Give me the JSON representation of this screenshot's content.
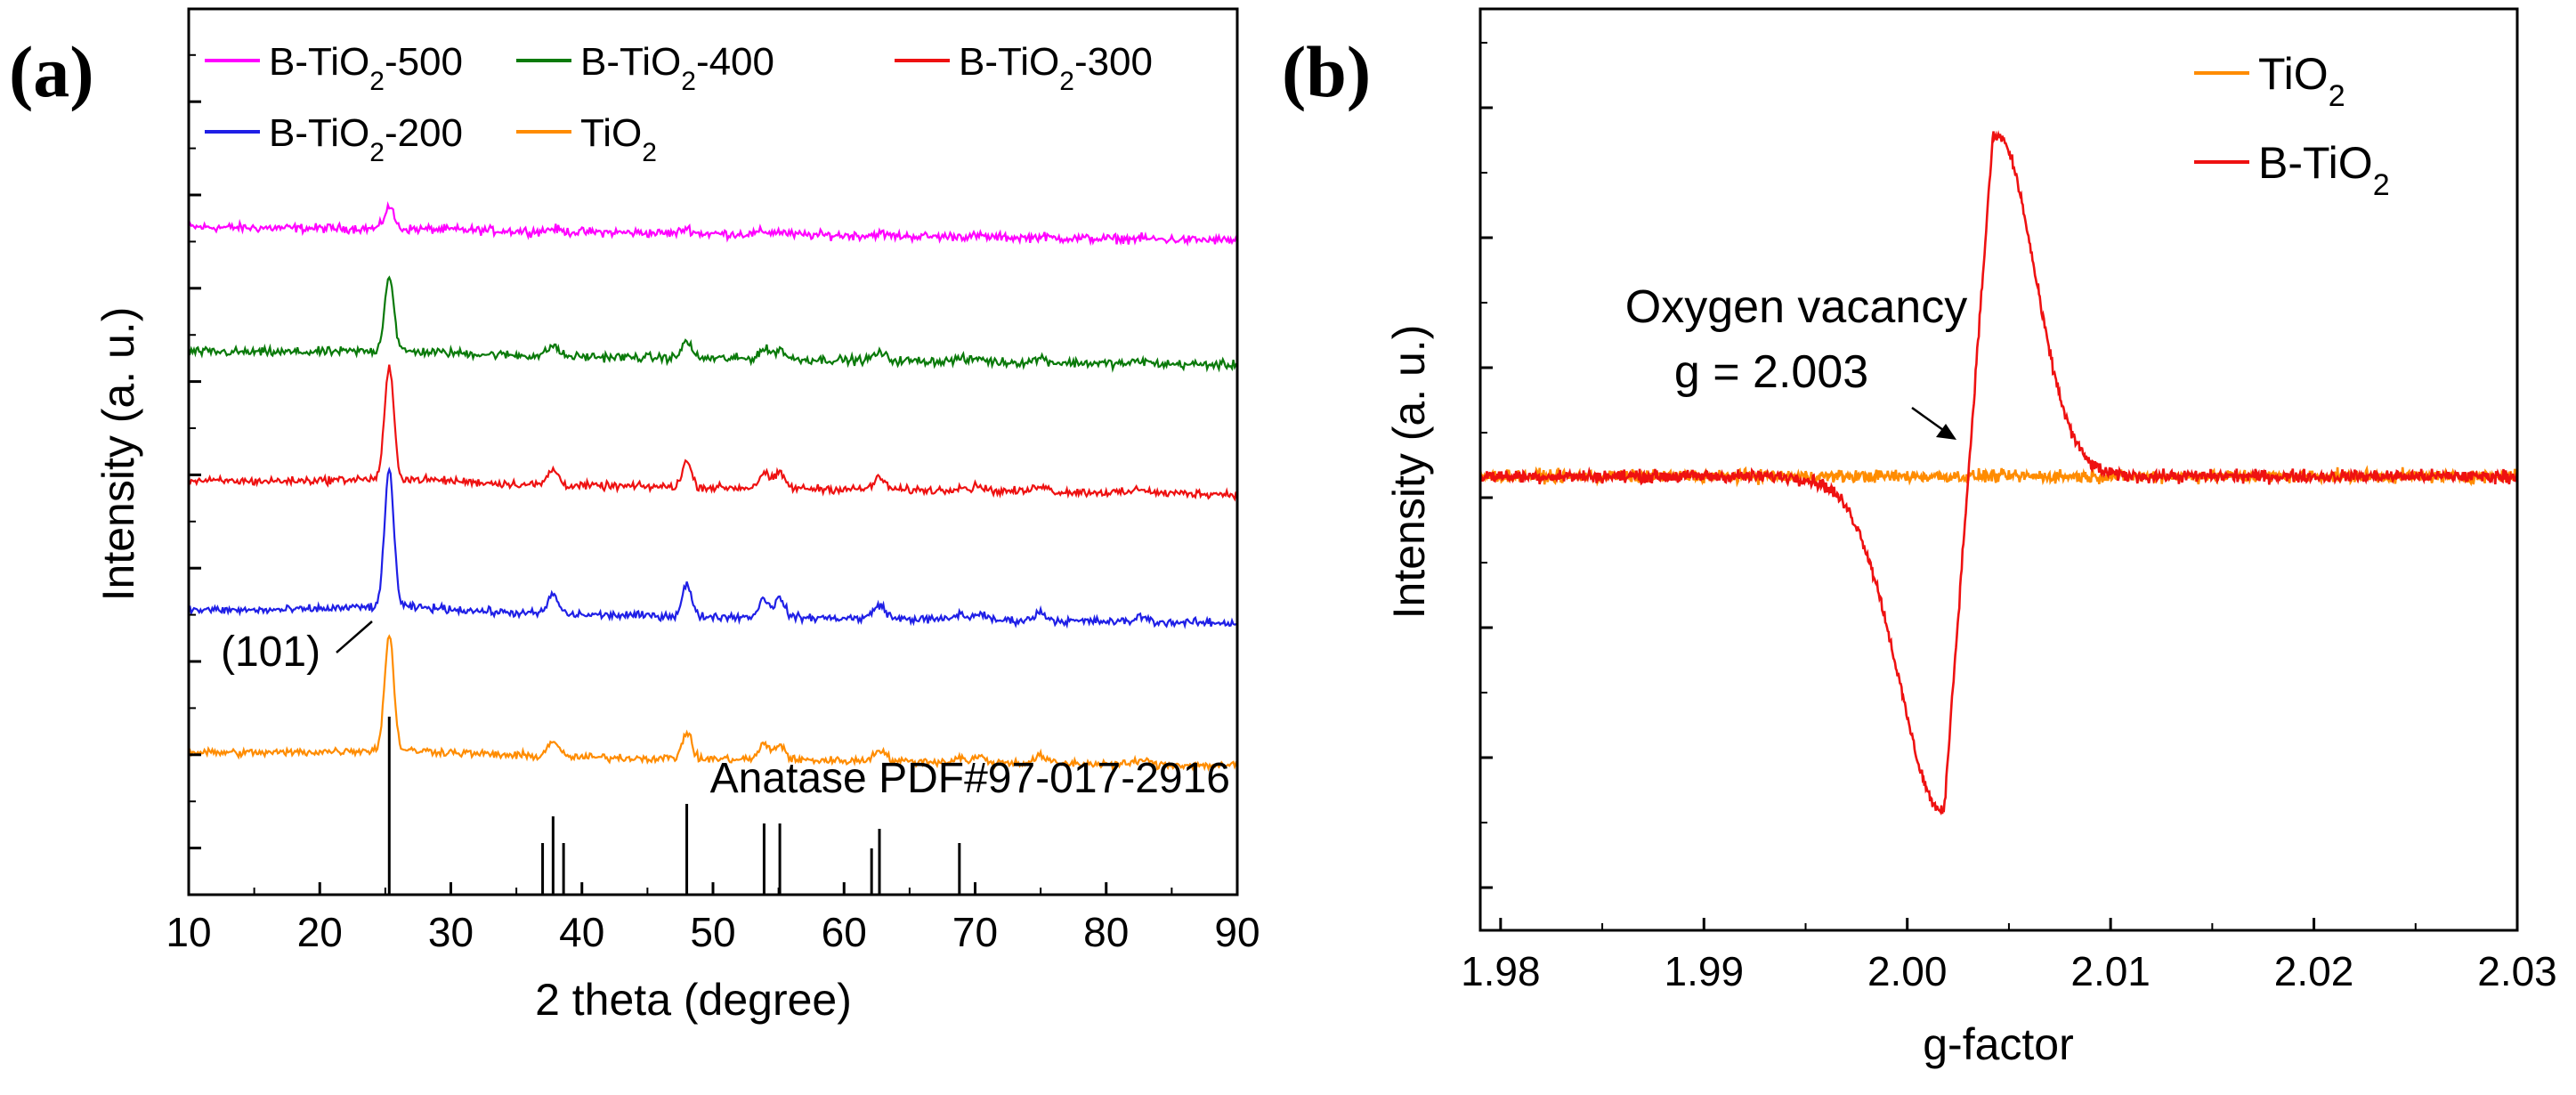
{
  "figure": {
    "label_a": "(a)",
    "label_b": "(b)"
  },
  "chart_data": [
    {
      "type": "line",
      "title": "",
      "xlabel": "2 theta (degree)",
      "ylabel": "Intensity (a. u.)",
      "xlim": [
        10,
        90
      ],
      "xticks": [
        10,
        20,
        30,
        40,
        50,
        60,
        70,
        80,
        90
      ],
      "yticks_labeled": false,
      "legend_position": "top",
      "series": [
        {
          "name": "B-TiO2-500",
          "label_main": "B-TiO",
          "label_sub": "2",
          "label_tail": "-500",
          "color": "#ff00ff",
          "offset": 6.25,
          "scale": 0.25,
          "noise": 0.05,
          "slope": 0.15
        },
        {
          "name": "B-TiO2-400",
          "label_main": "B-TiO",
          "label_sub": "2",
          "label_tail": "-400",
          "color": "#0a7a0a",
          "offset": 4.85,
          "scale": 0.85,
          "noise": 0.05,
          "slope": 0.15
        },
        {
          "name": "B-TiO2-300",
          "label_main": "B-TiO",
          "label_sub": "2",
          "label_tail": "-300",
          "color": "#ee1111",
          "offset": 3.4,
          "scale": 1.25,
          "noise": 0.045,
          "slope": 0.15
        },
        {
          "name": "B-TiO2-200",
          "label_main": "B-TiO",
          "label_sub": "2",
          "label_tail": "-200",
          "color": "#1f1fe6",
          "offset": 1.95,
          "scale": 1.55,
          "noise": 0.045,
          "slope": 0.15
        },
        {
          "name": "TiO2",
          "label_main": "TiO",
          "label_sub": "2",
          "label_tail": "",
          "color": "#ff8c00",
          "offset": 0.35,
          "scale": 1.3,
          "noise": 0.045,
          "slope": 0.15
        }
      ],
      "peaks": [
        {
          "pos": 25.3,
          "amp": 1.0,
          "width": 0.35
        },
        {
          "pos": 37.8,
          "amp": 0.14,
          "width": 0.4
        },
        {
          "pos": 48.0,
          "amp": 0.23,
          "width": 0.35
        },
        {
          "pos": 53.9,
          "amp": 0.13,
          "width": 0.4
        },
        {
          "pos": 55.1,
          "amp": 0.13,
          "width": 0.4
        },
        {
          "pos": 62.7,
          "amp": 0.1,
          "width": 0.45
        },
        {
          "pos": 68.8,
          "amp": 0.04,
          "width": 0.4
        },
        {
          "pos": 70.3,
          "amp": 0.05,
          "width": 0.4
        },
        {
          "pos": 75.0,
          "amp": 0.06,
          "width": 0.45
        },
        {
          "pos": 82.7,
          "amp": 0.04,
          "width": 0.45
        }
      ],
      "reference": {
        "label": "Anatase PDF#97-017-2916",
        "lines": [
          {
            "x": 25.3,
            "h": 1.0
          },
          {
            "x": 37.0,
            "h": 0.29
          },
          {
            "x": 37.8,
            "h": 0.44
          },
          {
            "x": 38.6,
            "h": 0.29
          },
          {
            "x": 48.0,
            "h": 0.51
          },
          {
            "x": 53.9,
            "h": 0.4
          },
          {
            "x": 55.1,
            "h": 0.4
          },
          {
            "x": 62.1,
            "h": 0.26
          },
          {
            "x": 62.7,
            "h": 0.37
          },
          {
            "x": 68.8,
            "h": 0.29
          }
        ]
      },
      "annotation": {
        "text": "(101)",
        "x": 25.3
      }
    },
    {
      "type": "line",
      "title": "",
      "xlabel": "g-factor",
      "ylabel": "Intensity (a. u.)",
      "xlim": [
        1.979,
        2.03
      ],
      "xticks": [
        1.98,
        1.99,
        2.0,
        2.01,
        2.02,
        2.03
      ],
      "xtick_labels": [
        "1.98",
        "1.99",
        "2.00",
        "2.01",
        "2.02",
        "2.03"
      ],
      "yticks_labeled": false,
      "legend_position": "top-right",
      "series": [
        {
          "name": "TiO2",
          "label_main": "TiO",
          "label_sub": "2",
          "label_tail": "",
          "color": "#ff8c00",
          "g0": 2.003,
          "amplitude": 0.0,
          "noise": 0.05
        },
        {
          "name": "B-TiO2",
          "label_main": "B-TiO",
          "label_sub": "2",
          "label_tail": "",
          "color": "#ee1111",
          "g0": 2.003,
          "amplitude": -2.7,
          "min_g": 2.0018,
          "min_value": -2.7,
          "max_g": 2.0042,
          "max_value": 2.7,
          "noise": 0.05
        }
      ],
      "annotation": {
        "line1": "Oxygen vacancy",
        "line2": "g = 2.003",
        "g": 2.003
      }
    }
  ]
}
